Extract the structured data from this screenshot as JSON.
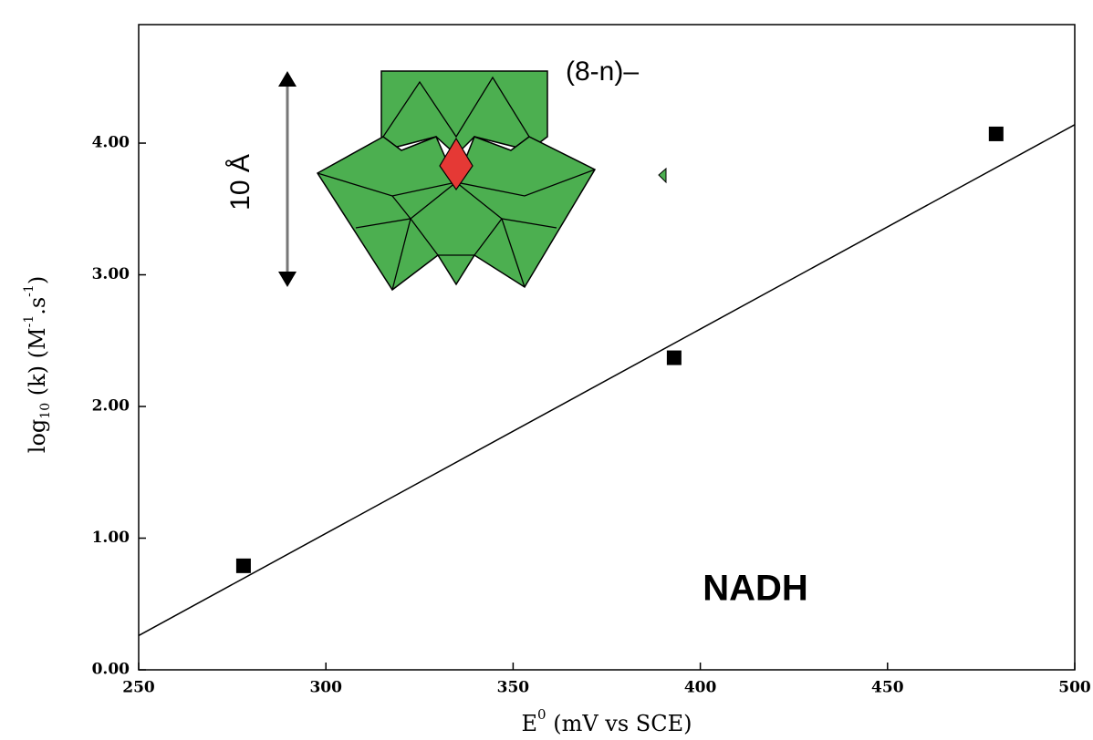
{
  "chart_data": {
    "type": "scatter",
    "x_label": {
      "base": "E",
      "sup": "0",
      "rest": " (mV vs SCE)"
    },
    "y_label": {
      "base": "log",
      "sub": "10",
      "mid": " (k) (M",
      "sup1": "-1",
      "mid2": ".s",
      "sup2": "-1",
      "end": ")"
    },
    "annotations": {
      "charge": "(8-n)–",
      "size": "10 Å",
      "reductant": "NADH"
    },
    "series": [
      {
        "mode": "markers",
        "color": "#000000",
        "x": [
          278,
          393,
          479
        ],
        "values": [
          0.79,
          2.37,
          4.07
        ]
      },
      {
        "mode": "line",
        "color": "#000000",
        "x": [
          250,
          500
        ],
        "values": [
          0.26,
          4.14
        ]
      }
    ],
    "xlim": [
      250,
      500
    ],
    "xticks": [
      250,
      300,
      350,
      400,
      450,
      500
    ],
    "ylim": [
      0,
      4.9
    ],
    "yticks": [
      {
        "value": 0,
        "label": "0.00"
      },
      {
        "value": 1,
        "label": "1.00"
      },
      {
        "value": 2,
        "label": "2.00"
      },
      {
        "value": 3,
        "label": "3.00"
      },
      {
        "value": 4,
        "label": "4.00"
      }
    ],
    "grid": false
  }
}
